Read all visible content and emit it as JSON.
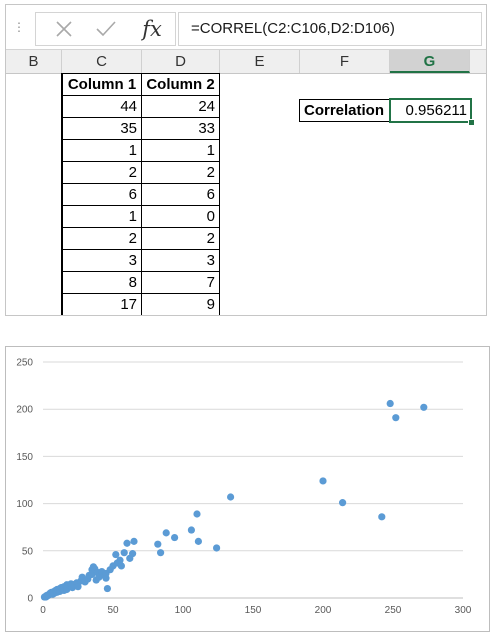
{
  "formula_bar": {
    "cancel_icon": "close-icon",
    "enter_icon": "checkmark-icon",
    "function_label": "fx",
    "formula": "=CORREL(C2:C106,D2:D106)"
  },
  "columns": [
    "B",
    "C",
    "D",
    "E",
    "F",
    "G"
  ],
  "selected_column": "G",
  "table": {
    "headers": [
      "Column 1",
      "Column 2"
    ],
    "rows": [
      [
        "44",
        "24"
      ],
      [
        "35",
        "33"
      ],
      [
        "1",
        "1"
      ],
      [
        "2",
        "2"
      ],
      [
        "6",
        "6"
      ],
      [
        "1",
        "0"
      ],
      [
        "2",
        "2"
      ],
      [
        "3",
        "3"
      ],
      [
        "8",
        "7"
      ],
      [
        "17",
        "9"
      ]
    ]
  },
  "correlation": {
    "label": "Correlation",
    "value": "0.956211"
  },
  "chart_data": {
    "type": "scatter",
    "title": "",
    "xlabel": "",
    "ylabel": "",
    "xlim": [
      0,
      300
    ],
    "ylim": [
      0,
      250
    ],
    "x_ticks": [
      "0",
      "50",
      "100",
      "150",
      "200",
      "250",
      "300"
    ],
    "y_ticks": [
      "0",
      "50",
      "100",
      "150",
      "200",
      "250"
    ],
    "grid": "horizontal",
    "marker_color": "#5b9bd5",
    "points": [
      [
        1,
        1
      ],
      [
        2,
        1
      ],
      [
        2,
        2
      ],
      [
        3,
        2
      ],
      [
        3,
        3
      ],
      [
        4,
        3
      ],
      [
        5,
        4
      ],
      [
        5,
        5
      ],
      [
        6,
        5
      ],
      [
        6,
        6
      ],
      [
        7,
        4
      ],
      [
        7,
        6
      ],
      [
        8,
        7
      ],
      [
        8,
        5
      ],
      [
        9,
        8
      ],
      [
        10,
        6
      ],
      [
        10,
        9
      ],
      [
        11,
        8
      ],
      [
        12,
        10
      ],
      [
        12,
        7
      ],
      [
        13,
        11
      ],
      [
        14,
        9
      ],
      [
        15,
        12
      ],
      [
        15,
        8
      ],
      [
        16,
        10
      ],
      [
        17,
        9
      ],
      [
        17,
        14
      ],
      [
        18,
        12
      ],
      [
        19,
        13
      ],
      [
        20,
        15
      ],
      [
        21,
        11
      ],
      [
        22,
        14
      ],
      [
        24,
        16
      ],
      [
        25,
        12
      ],
      [
        27,
        18
      ],
      [
        28,
        22
      ],
      [
        30,
        17
      ],
      [
        32,
        20
      ],
      [
        33,
        24
      ],
      [
        35,
        25
      ],
      [
        35,
        30
      ],
      [
        36,
        33
      ],
      [
        37,
        31
      ],
      [
        38,
        19
      ],
      [
        39,
        27
      ],
      [
        40,
        22
      ],
      [
        42,
        28
      ],
      [
        44,
        24
      ],
      [
        45,
        26
      ],
      [
        45,
        21
      ],
      [
        46,
        10
      ],
      [
        48,
        30
      ],
      [
        50,
        34
      ],
      [
        52,
        46
      ],
      [
        53,
        37
      ],
      [
        55,
        40
      ],
      [
        56,
        34
      ],
      [
        58,
        48
      ],
      [
        60,
        58
      ],
      [
        62,
        42
      ],
      [
        64,
        47
      ],
      [
        65,
        60
      ],
      [
        82,
        57
      ],
      [
        84,
        48
      ],
      [
        88,
        69
      ],
      [
        94,
        64
      ],
      [
        106,
        72
      ],
      [
        110,
        89
      ],
      [
        111,
        60
      ],
      [
        124,
        53
      ],
      [
        134,
        107
      ],
      [
        200,
        124
      ],
      [
        214,
        101
      ],
      [
        242,
        86
      ],
      [
        248,
        206
      ],
      [
        252,
        191
      ],
      [
        272,
        202
      ]
    ]
  }
}
